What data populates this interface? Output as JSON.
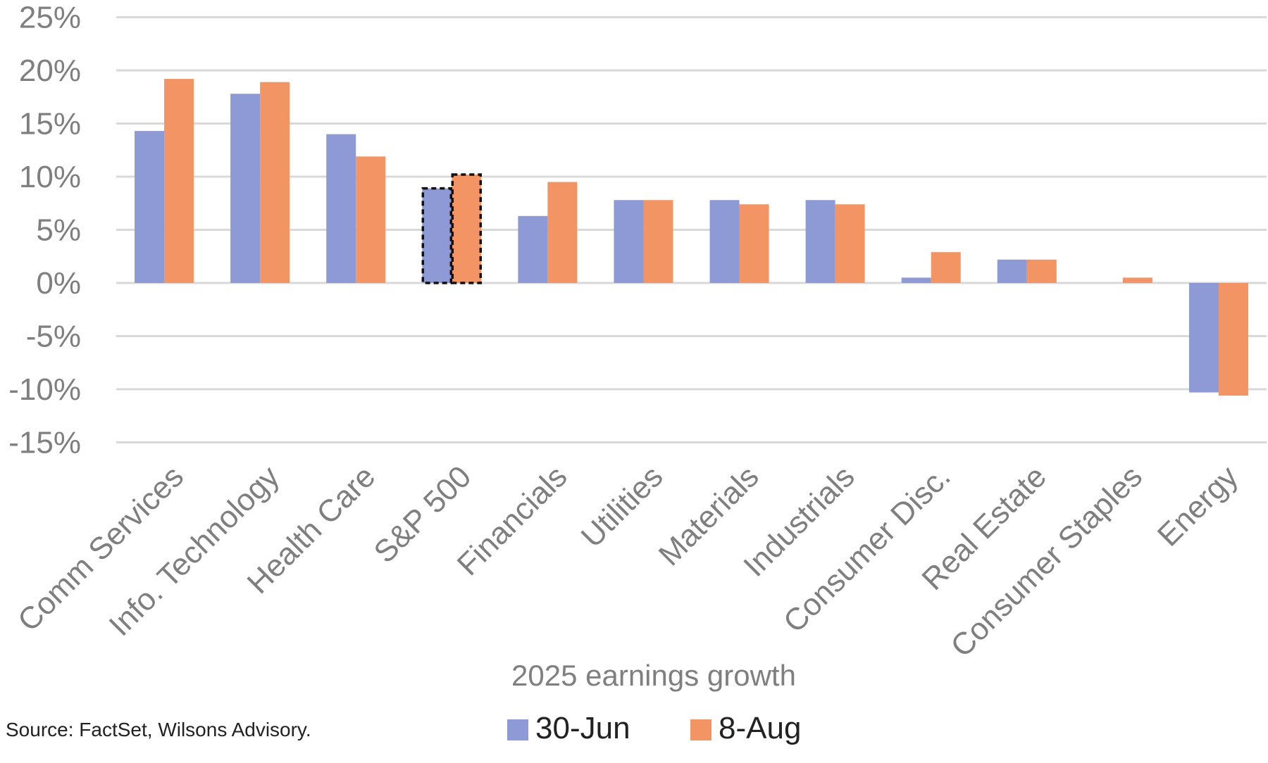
{
  "chart_data": {
    "type": "bar",
    "title": "",
    "xlabel": "2025 earnings growth",
    "ylabel": "",
    "ylim": [
      -15,
      25
    ],
    "ytick_values": [
      25,
      20,
      15,
      10,
      5,
      0,
      -5,
      -10,
      -15
    ],
    "ytick_labels": [
      "25%",
      "20%",
      "15%",
      "10%",
      "5%",
      "0%",
      "-5%",
      "-10%",
      "-15%"
    ],
    "grid": true,
    "legend_position": "bottom",
    "categories": [
      "Comm Services",
      "Info. Technology",
      "Health Care",
      "S&P 500",
      "Financials",
      "Utilities",
      "Materials",
      "Industrials",
      "Consumer Disc.",
      "Real Estate",
      "Consumer Staples",
      "Energy"
    ],
    "highlighted_category": "S&P 500",
    "series": [
      {
        "name": "30-Jun",
        "color": "#8e9ad6",
        "values": [
          14.3,
          17.8,
          14.0,
          8.9,
          6.3,
          7.8,
          7.8,
          7.8,
          0.5,
          2.2,
          0.0,
          -10.3
        ]
      },
      {
        "name": "8-Aug",
        "color": "#f29463",
        "values": [
          19.2,
          18.9,
          11.9,
          10.2,
          9.5,
          7.8,
          7.4,
          7.4,
          2.9,
          2.2,
          0.5,
          -10.6
        ]
      }
    ]
  },
  "source": "Source: FactSet, Wilsons Advisory."
}
